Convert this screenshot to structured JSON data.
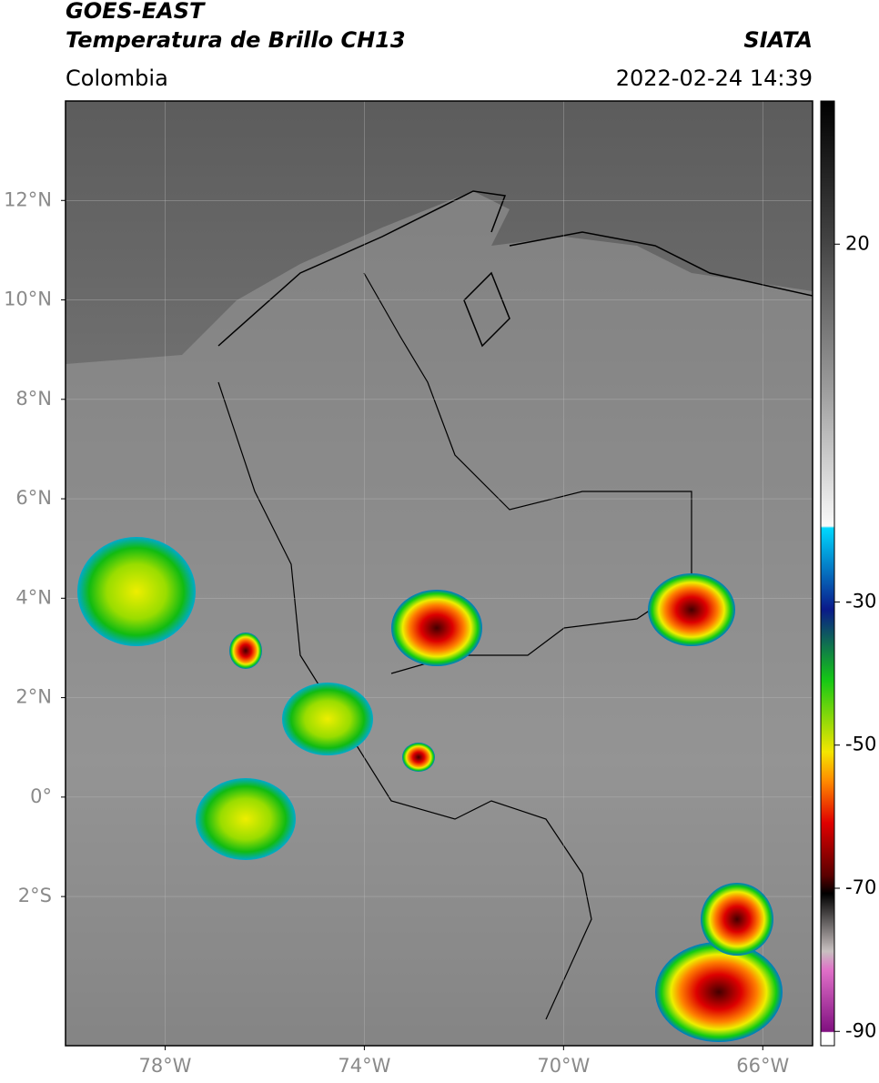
{
  "header": {
    "line1": "GOES-EAST",
    "line2": "Temperatura de Brillo CH13",
    "region": "Colombia",
    "source": "SIATA",
    "datetime": "2022-02-24 14:39"
  },
  "map": {
    "xlim": [
      -80,
      -65
    ],
    "ylim": [
      -5,
      14
    ],
    "xticks": [
      {
        "value": -78,
        "label": "78°W"
      },
      {
        "value": -74,
        "label": "74°W"
      },
      {
        "value": -70,
        "label": "70°W"
      },
      {
        "value": -66,
        "label": "66°W"
      }
    ],
    "yticks": [
      {
        "value": 12,
        "label": "12°N"
      },
      {
        "value": 10,
        "label": "10°N"
      },
      {
        "value": 8,
        "label": "8°N"
      },
      {
        "value": 6,
        "label": "6°N"
      },
      {
        "value": 4,
        "label": "4°N"
      },
      {
        "value": 2,
        "label": "2°N"
      },
      {
        "value": 0,
        "label": "0°"
      },
      {
        "value": -2,
        "label": "2°S"
      }
    ],
    "grid": true
  },
  "colorbar": {
    "lim": [
      -92,
      40
    ],
    "ticks": [
      20,
      -30,
      -50,
      -70,
      -90
    ]
  }
}
